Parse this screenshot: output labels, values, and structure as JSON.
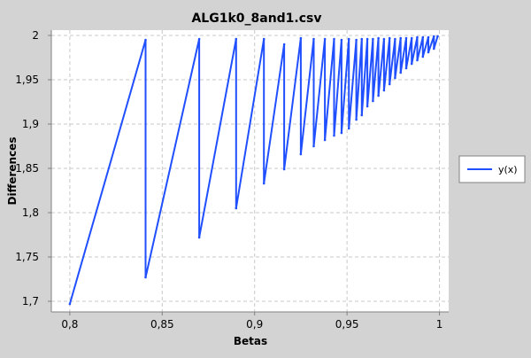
{
  "chart_data": {
    "type": "line",
    "title": "ALG1k0_8and1.csv",
    "xlabel": "Betas",
    "ylabel": "Differences",
    "xlim": [
      0.79,
      1.005
    ],
    "ylim": [
      1.688,
      2.006
    ],
    "x_ticks": [
      0.8,
      0.85,
      0.9,
      0.95,
      1.0
    ],
    "x_tick_labels": [
      "0,8",
      "0,85",
      "0,9",
      "0,95",
      "1"
    ],
    "y_ticks": [
      1.7,
      1.75,
      1.8,
      1.85,
      1.9,
      1.95,
      2.0
    ],
    "y_tick_labels": [
      "1,7",
      "1,75",
      "1,8",
      "1,85",
      "1,9",
      "1,95",
      "2"
    ],
    "grid": true,
    "legend_position": "right",
    "colors": {
      "series": "#1f4fff",
      "background": "#d3d3d3",
      "plot": "#ffffff",
      "grid": "#c8c8c8"
    },
    "series": [
      {
        "name": "y(x)",
        "x": [
          0.8,
          0.841,
          0.841,
          0.87,
          0.87,
          0.89,
          0.89,
          0.905,
          0.905,
          0.916,
          0.916,
          0.925,
          0.925,
          0.932,
          0.932,
          0.938,
          0.938,
          0.943,
          0.943,
          0.947,
          0.947,
          0.951,
          0.951,
          0.955,
          0.955,
          0.958,
          0.958,
          0.961,
          0.961,
          0.964,
          0.964,
          0.967,
          0.967,
          0.97,
          0.97,
          0.973,
          0.973,
          0.976,
          0.976,
          0.979,
          0.979,
          0.982,
          0.982,
          0.985,
          0.985,
          0.988,
          0.988,
          0.991,
          0.991,
          0.994,
          0.994,
          0.997,
          0.997,
          0.999
        ],
        "y": [
          1.697,
          1.995,
          1.727,
          1.996,
          1.772,
          1.996,
          1.805,
          1.996,
          1.833,
          1.99,
          1.849,
          1.997,
          1.866,
          1.996,
          1.875,
          1.996,
          1.882,
          1.996,
          1.887,
          1.995,
          1.89,
          1.996,
          1.895,
          1.995,
          1.905,
          1.996,
          1.91,
          1.996,
          1.92,
          1.996,
          1.926,
          1.997,
          1.932,
          1.996,
          1.938,
          1.997,
          1.945,
          1.996,
          1.952,
          1.997,
          1.958,
          1.997,
          1.963,
          1.997,
          1.968,
          1.998,
          1.972,
          1.998,
          1.976,
          1.998,
          1.981,
          1.999,
          1.985,
          1.999
        ]
      }
    ]
  }
}
